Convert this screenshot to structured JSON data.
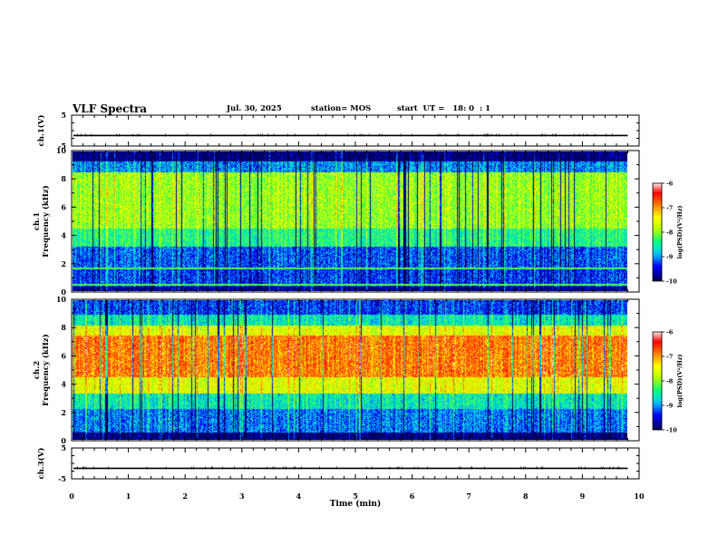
{
  "header": {
    "title": "VLF Spectra",
    "date": "Jul. 30, 2025",
    "station": "station= MOS",
    "start": "start  UT =   18: 0  : 1"
  },
  "chart_data": [
    {
      "type": "line",
      "panel": "ch1-waveform",
      "ylabel": "ch.1(V)",
      "ylim": [
        -5,
        5
      ],
      "yticks": [
        "5",
        "-5"
      ],
      "xlim": [
        0,
        10
      ],
      "series": [
        {
          "level": -1.6,
          "color": "#000000"
        }
      ]
    },
    {
      "type": "heatmap",
      "panel": "ch1-spectrogram",
      "ylabel": "ch.1\nFrequency (kHz)",
      "ylim": [
        0,
        10
      ],
      "yticks": [
        "0",
        "2",
        "4",
        "6",
        "8",
        "10"
      ],
      "xlim": [
        0,
        9.8
      ],
      "colorbar": {
        "label": "log(PSD)(V²/Hz)",
        "range": [
          -10,
          -6
        ],
        "ticks": [
          "-6",
          "-7",
          "-8",
          "-9",
          "-10"
        ]
      },
      "profile": "ch1"
    },
    {
      "type": "heatmap",
      "panel": "ch2-spectrogram",
      "ylabel": "ch.2\nFrequency (kHz)",
      "ylim": [
        0,
        10
      ],
      "yticks": [
        "0",
        "2",
        "4",
        "6",
        "8",
        "10"
      ],
      "xlim": [
        0,
        9.8
      ],
      "colorbar": {
        "label": "log(PSD)(V²/Hz)",
        "range": [
          -10,
          -6
        ],
        "ticks": [
          "-6",
          "-7",
          "-8",
          "-9",
          "-10"
        ]
      },
      "profile": "ch2"
    },
    {
      "type": "line",
      "panel": "ch3-waveform",
      "ylabel": "ch.3(V)",
      "ylim": [
        -5,
        5
      ],
      "yticks": [
        "5",
        "-5"
      ],
      "xlim": [
        0,
        10
      ],
      "series": [
        {
          "level": -1.6,
          "color": "#000000"
        }
      ]
    }
  ],
  "xaxis": {
    "label": "Time (min)",
    "ticks": [
      "0",
      "1",
      "2",
      "3",
      "4",
      "5",
      "6",
      "7",
      "8",
      "9",
      "10"
    ]
  },
  "colors": {
    "axes": "#000000",
    "background": "#ffffff",
    "colormap": [
      "#000050",
      "#0000ff",
      "#00c8ff",
      "#00ff80",
      "#b4ff00",
      "#ffff00",
      "#ff8000",
      "#ff0000",
      "#ffffff"
    ]
  }
}
